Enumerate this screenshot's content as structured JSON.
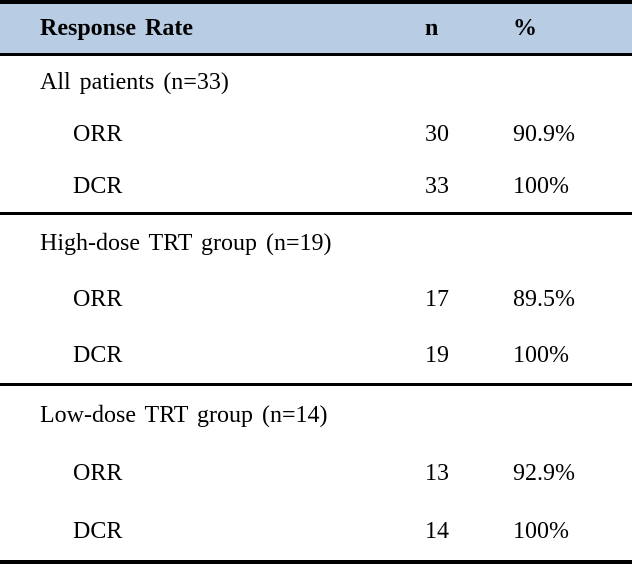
{
  "colors": {
    "header_background": "#b8cce4",
    "rule": "#000000",
    "text": "#000000",
    "page_background": "#ffffff"
  },
  "table": {
    "header": {
      "label": "Response Rate",
      "n": "n",
      "pct": "%"
    },
    "sections": [
      {
        "title": "All patients (n=33)",
        "rows": [
          {
            "label": "ORR",
            "n": "30",
            "pct": "90.9%"
          },
          {
            "label": "DCR",
            "n": "33",
            "pct": "100%"
          }
        ]
      },
      {
        "title": "High-dose TRT group (n=19)",
        "rows": [
          {
            "label": "ORR",
            "n": "17",
            "pct": "89.5%"
          },
          {
            "label": "DCR",
            "n": "19",
            "pct": "100%"
          }
        ]
      },
      {
        "title": "Low-dose TRT group (n=14)",
        "rows": [
          {
            "label": "ORR",
            "n": "13",
            "pct": "92.9%"
          },
          {
            "label": "DCR",
            "n": "14",
            "pct": "100%"
          }
        ]
      }
    ]
  }
}
